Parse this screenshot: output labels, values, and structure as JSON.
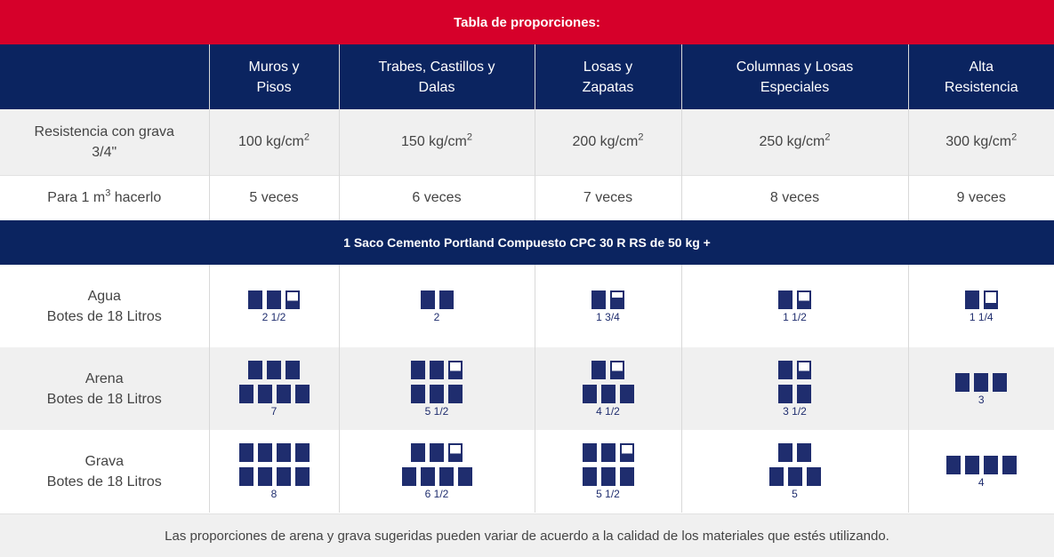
{
  "title": "Tabla de proporciones:",
  "columns": [
    {
      "line1": "Muros y",
      "line2": "Pisos"
    },
    {
      "line1": "Trabes, Castillos y",
      "line2": "Dalas"
    },
    {
      "line1": "Losas y",
      "line2": "Zapatas"
    },
    {
      "line1": "Columnas y Losas",
      "line2": "Especiales"
    },
    {
      "line1": "Alta",
      "line2": "Resistencia"
    }
  ],
  "resistencia": {
    "label_line1": "Resistencia con grava",
    "label_line2": "3/4\"",
    "unit_sup": "2",
    "values": [
      "100 kg/cm",
      "150 kg/cm",
      "200 kg/cm",
      "250 kg/cm",
      "300 kg/cm"
    ]
  },
  "para": {
    "label_pre": "Para 1 m",
    "label_sup": "3",
    "label_post": " hacerlo",
    "values": [
      "5 veces",
      "6 veces",
      "7 veces",
      "8 veces",
      "9 veces"
    ]
  },
  "section_title": "1 Saco Cemento Portland Compuesto CPC 30 R RS de 50 kg +",
  "materials": [
    {
      "name": "Agua",
      "unit": "Botes de 18 Litros",
      "quantities": [
        "2 1/2",
        "2",
        "1 3/4",
        "1 1/2",
        "1 1/4"
      ],
      "icon_rows": [
        [
          [
            "full",
            "full",
            "half"
          ]
        ],
        [
          [
            "full",
            "full"
          ]
        ],
        [
          [
            "full",
            "threeq"
          ]
        ],
        [
          [
            "full",
            "half"
          ]
        ],
        [
          [
            "full",
            "quarter"
          ]
        ]
      ]
    },
    {
      "name": "Arena",
      "unit": "Botes de 18 Litros",
      "quantities": [
        "7",
        "5 1/2",
        "4 1/2",
        "3 1/2",
        "3"
      ],
      "icon_rows": [
        [
          [
            "full",
            "full",
            "full"
          ],
          [
            "full",
            "full",
            "full",
            "full"
          ]
        ],
        [
          [
            "full",
            "full",
            "half"
          ],
          [
            "full",
            "full",
            "full"
          ]
        ],
        [
          [
            "full",
            "half"
          ],
          [
            "full",
            "full",
            "full"
          ]
        ],
        [
          [
            "full",
            "half"
          ],
          [
            "full",
            "full"
          ]
        ],
        [
          [
            "full",
            "full",
            "full"
          ]
        ]
      ]
    },
    {
      "name": "Grava",
      "unit": "Botes de 18 Litros",
      "quantities": [
        "8",
        "6 1/2",
        "5 1/2",
        "5",
        "4"
      ],
      "icon_rows": [
        [
          [
            "full",
            "full",
            "full",
            "full"
          ],
          [
            "full",
            "full",
            "full",
            "full"
          ]
        ],
        [
          [
            "full",
            "full",
            "half"
          ],
          [
            "full",
            "full",
            "full",
            "full"
          ]
        ],
        [
          [
            "full",
            "full",
            "half"
          ],
          [
            "full",
            "full",
            "full"
          ]
        ],
        [
          [
            "full",
            "full"
          ],
          [
            "full",
            "full",
            "full"
          ]
        ],
        [
          [
            "full",
            "full",
            "full",
            "full"
          ]
        ]
      ]
    }
  ],
  "note": "Las proporciones de arena y grava sugeridas pueden variar de acuerdo a la calidad de los materiales que estés utilizando.",
  "colors": {
    "red": "#d6002a",
    "navy": "#0b2460",
    "bucket": "#1f2d6e",
    "row_gray": "#f0f0f0"
  },
  "icon_name": "bucket-icon"
}
